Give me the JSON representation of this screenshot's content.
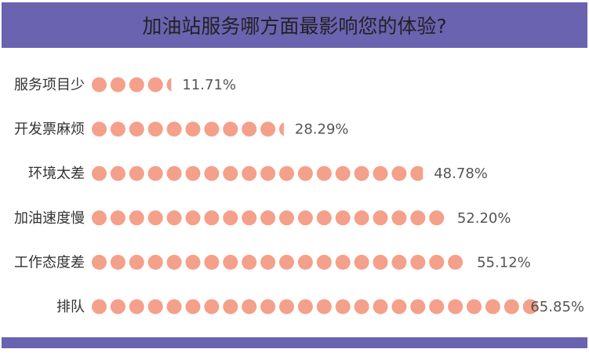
{
  "title": "加油站服务哪方面最影响您的体验?",
  "colors": {
    "header": "#6a63b0",
    "dot": "#f4a08a"
  },
  "chart_data": {
    "type": "bar",
    "title": "加油站服务哪方面最影响您的体验?",
    "categories": [
      "服务项目少",
      "开发票麻烦",
      "环境太差",
      "加油速度慢",
      "工作态度差",
      "排队"
    ],
    "values": [
      11.71,
      28.29,
      48.78,
      52.2,
      55.12,
      65.85
    ],
    "value_labels": [
      "11.71%",
      "28.29%",
      "48.78%",
      "52.20%",
      "55.12%",
      "65.85%"
    ],
    "unit": "%",
    "xlim": [
      0,
      65.85
    ],
    "grid": false,
    "legend": "none"
  }
}
